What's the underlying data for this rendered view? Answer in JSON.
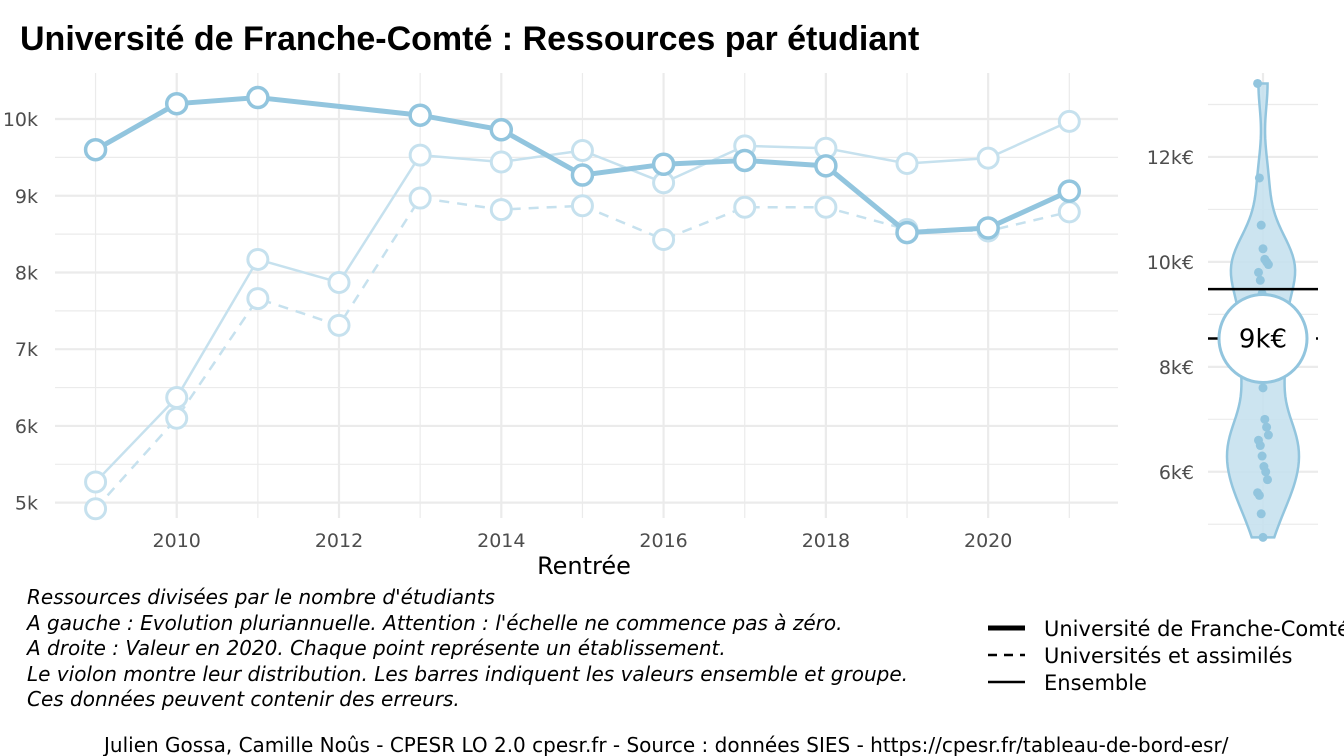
{
  "chart_data": {
    "type": "line",
    "title": "Université de Franche-Comté  :  Ressources par étudiant",
    "xlabel": "Rentrée",
    "ylabel": "",
    "x": [
      2009,
      2010,
      2011,
      2012,
      2013,
      2014,
      2015,
      2016,
      2017,
      2018,
      2019,
      2020,
      2021
    ],
    "x_ticks": [
      "2010",
      "2012",
      "2014",
      "2016",
      "2018",
      "2020"
    ],
    "y_ticks": [
      "5k",
      "6k",
      "7k",
      "8k",
      "9k",
      "10k"
    ],
    "xlim": [
      2008.5,
      2021.6
    ],
    "ylim": [
      4800,
      10600
    ],
    "series": [
      {
        "name": "Université de Franche-Comté",
        "style": "thick",
        "values": [
          9600,
          10200,
          10280,
          null,
          10050,
          9860,
          9270,
          9410,
          9460,
          9390,
          8520,
          8580,
          9060
        ]
      },
      {
        "name": "Universités et assimilés",
        "style": "dashed",
        "values": [
          4920,
          6100,
          7660,
          7310,
          8970,
          8820,
          8870,
          8430,
          8850,
          8850,
          8560,
          8540,
          8790
        ]
      },
      {
        "name": "Ensemble",
        "style": "thin",
        "values": [
          5270,
          6370,
          8170,
          7870,
          9530,
          9440,
          9590,
          9170,
          9650,
          9620,
          9420,
          9490,
          9970
        ]
      }
    ],
    "gap_years": [
      2012
    ],
    "violin": {
      "y_ticks": [
        "6k€",
        "8k€",
        "10k€",
        "12k€"
      ],
      "ylim": [
        4700,
        13600
      ],
      "points": [
        13400,
        11600,
        10700,
        10250,
        10050,
        10000,
        9950,
        9800,
        9650,
        9400,
        9100,
        8800,
        8600,
        8300,
        8000,
        7800,
        7600,
        7000,
        6850,
        6700,
        6600,
        6500,
        6300,
        6100,
        6000,
        5850,
        5600,
        5550,
        5200,
        4750
      ],
      "ensemble_value": 9480,
      "group_value": 8540,
      "highlight_value": 8540,
      "highlight_label": "9k€"
    },
    "legend": {
      "placement": "bottom-right",
      "entries": [
        {
          "label": "Université de Franche-Comté",
          "style": "thick"
        },
        {
          "label": "Universités et assimilés",
          "style": "dashed"
        },
        {
          "label": "Ensemble",
          "style": "thin"
        }
      ]
    },
    "colors": {
      "main": "#92c5de",
      "main_light": "#c6e1ee",
      "violin_fill": "#c6e1ee",
      "grid": "#ebebeb",
      "tick_text": "#4d4d4d"
    }
  },
  "caption": [
    "Ressources divisées par le nombre d'étudiants",
    "A gauche : Evolution pluriannuelle. Attention : l'échelle ne commence pas à zéro.",
    "A droite : Valeur en 2020. Chaque point représente un établissement.",
    "Le violon montre leur distribution. Les barres indiquent les valeurs ensemble et groupe.",
    "Ces données peuvent contenir des erreurs."
  ],
  "footer": "Julien Gossa, Camille Noûs - CPESR LO 2.0 cpesr.fr - Source : données SIES - https://cpesr.fr/tableau-de-bord-esr/"
}
